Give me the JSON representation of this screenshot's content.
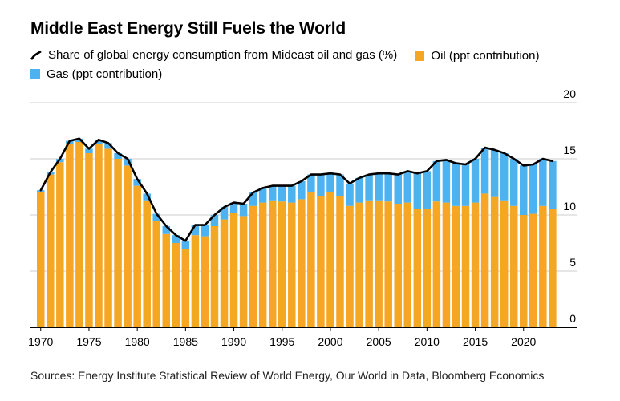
{
  "title": "Middle East Energy Still Fuels the World",
  "legend": {
    "line": "Share of global energy consumption from Mideast oil and gas (%)",
    "oil": "Oil (ppt contribution)",
    "gas": "Gas (ppt contribution)"
  },
  "colors": {
    "oil": "#f5a623",
    "gas": "#4db3f0",
    "line": "#000000",
    "grid": "#cccccc"
  },
  "source": "Sources: Energy Institute Statistical Review of World Energy, Our World in Data, Bloomberg Economics",
  "chart_data": {
    "type": "bar",
    "stacked": true,
    "x": [
      1970,
      1971,
      1972,
      1973,
      1974,
      1975,
      1976,
      1977,
      1978,
      1979,
      1980,
      1981,
      1982,
      1983,
      1984,
      1985,
      1986,
      1987,
      1988,
      1989,
      1990,
      1991,
      1992,
      1993,
      1994,
      1995,
      1996,
      1997,
      1998,
      1999,
      2000,
      2001,
      2002,
      2003,
      2004,
      2005,
      2006,
      2007,
      2008,
      2009,
      2010,
      2011,
      2012,
      2013,
      2014,
      2015,
      2016,
      2017,
      2018,
      2019,
      2020,
      2021,
      2022,
      2023
    ],
    "series": [
      {
        "name": "Oil (ppt contribution)",
        "values": [
          12.0,
          13.6,
          14.7,
          16.3,
          16.5,
          15.5,
          16.3,
          15.9,
          15.0,
          14.4,
          12.6,
          11.3,
          9.5,
          8.3,
          7.5,
          7.0,
          8.2,
          8.1,
          9.0,
          9.6,
          10.2,
          9.9,
          10.8,
          11.1,
          11.3,
          11.2,
          11.1,
          11.4,
          12.0,
          11.7,
          12.0,
          11.7,
          10.8,
          11.1,
          11.3,
          11.3,
          11.2,
          11.0,
          11.1,
          10.5,
          10.5,
          11.2,
          11.1,
          10.8,
          10.8,
          11.1,
          11.9,
          11.6,
          11.3,
          10.8,
          10.0,
          10.1,
          10.8,
          10.5
        ]
      },
      {
        "name": "Gas (ppt contribution)",
        "values": [
          0.2,
          0.2,
          0.3,
          0.3,
          0.3,
          0.4,
          0.4,
          0.5,
          0.5,
          0.6,
          0.6,
          0.6,
          0.6,
          0.7,
          0.7,
          0.7,
          0.9,
          1.0,
          1.0,
          1.1,
          0.9,
          1.1,
          1.2,
          1.3,
          1.3,
          1.4,
          1.5,
          1.6,
          1.6,
          1.9,
          1.7,
          1.9,
          2.0,
          2.2,
          2.3,
          2.4,
          2.5,
          2.6,
          2.8,
          3.2,
          3.4,
          3.6,
          3.8,
          3.8,
          3.7,
          3.9,
          4.1,
          4.2,
          4.2,
          4.2,
          4.4,
          4.4,
          4.2,
          4.3
        ]
      }
    ],
    "line": {
      "name": "Share of global energy consumption from Mideast oil and gas (%)",
      "values": [
        12.2,
        13.8,
        15.0,
        16.6,
        16.8,
        15.9,
        16.7,
        16.4,
        15.5,
        15.0,
        13.2,
        11.9,
        10.1,
        9.0,
        8.2,
        7.7,
        9.1,
        9.1,
        10.0,
        10.7,
        11.1,
        11.0,
        12.0,
        12.4,
        12.6,
        12.6,
        12.6,
        13.0,
        13.6,
        13.6,
        13.7,
        13.6,
        12.8,
        13.3,
        13.6,
        13.7,
        13.7,
        13.6,
        13.9,
        13.7,
        13.9,
        14.8,
        14.9,
        14.6,
        14.5,
        15.0,
        16.0,
        15.8,
        15.5,
        15.0,
        14.4,
        14.5,
        15.0,
        14.8
      ]
    },
    "y_ticks": [
      0,
      5,
      10,
      15,
      20
    ],
    "x_ticks": [
      1970,
      1975,
      1980,
      1985,
      1990,
      1995,
      2000,
      2005,
      2010,
      2015,
      2020
    ],
    "ylim": [
      0,
      20
    ],
    "xlabel": "",
    "ylabel": ""
  }
}
